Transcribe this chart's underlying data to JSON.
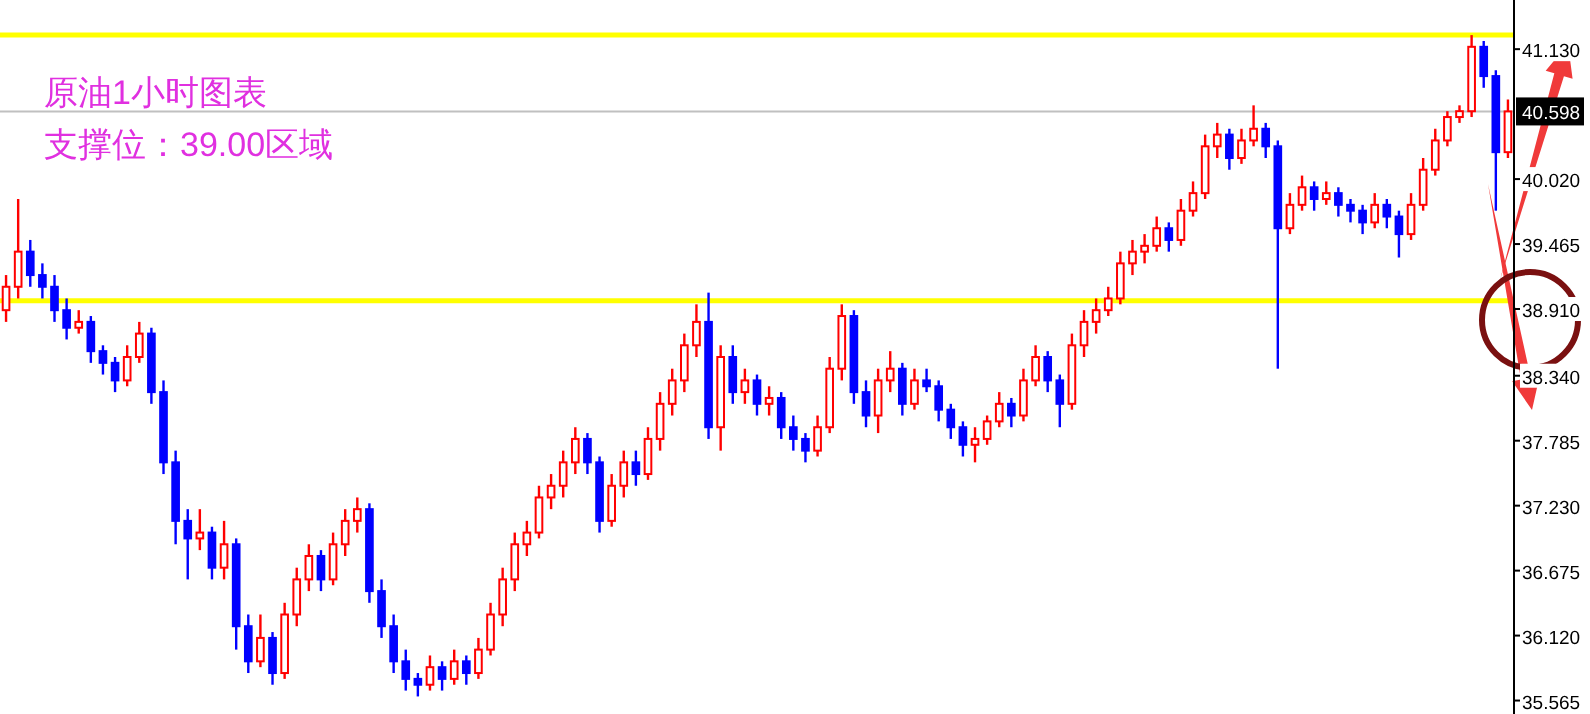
{
  "chart_data": {
    "type": "candlestick",
    "title": "原油1小时图表",
    "subtitle": "支撑位：39.00区域",
    "categories": [
      null,
      null,
      null,
      null,
      null,
      null,
      null,
      null,
      null,
      null,
      null,
      null,
      null,
      null,
      null,
      null,
      null,
      null,
      null,
      null,
      null,
      null,
      null,
      null,
      null,
      null,
      null,
      null,
      null,
      null,
      null,
      null,
      null,
      null,
      null,
      null,
      null,
      null,
      null,
      null,
      null,
      null,
      null,
      null,
      null,
      null,
      null,
      null,
      null,
      null,
      null,
      null,
      null,
      null,
      null,
      null,
      null,
      null,
      null,
      null,
      null,
      null,
      null,
      null,
      null,
      null,
      null,
      null,
      null,
      null,
      null,
      null,
      null,
      null,
      null,
      null,
      null,
      null,
      null,
      null,
      null,
      null,
      null,
      null,
      null,
      null,
      null,
      null,
      null,
      null,
      null,
      null,
      null,
      null,
      null,
      null,
      null,
      null,
      null,
      null,
      null,
      null,
      null,
      null,
      null,
      null,
      null,
      null,
      null,
      null,
      null,
      null,
      null,
      null,
      null,
      null,
      null,
      null,
      null,
      null,
      null,
      null,
      null,
      null,
      null
    ],
    "ohlc": [
      [
        38.9,
        39.2,
        38.8,
        39.1
      ],
      [
        39.1,
        39.85,
        39.0,
        39.4
      ],
      [
        39.4,
        39.5,
        39.1,
        39.2
      ],
      [
        39.2,
        39.3,
        39.0,
        39.1
      ],
      [
        39.1,
        39.2,
        38.8,
        38.9
      ],
      [
        38.9,
        39.0,
        38.65,
        38.75
      ],
      [
        38.75,
        38.9,
        38.7,
        38.8
      ],
      [
        38.8,
        38.85,
        38.45,
        38.55
      ],
      [
        38.55,
        38.6,
        38.35,
        38.45
      ],
      [
        38.45,
        38.5,
        38.2,
        38.3
      ],
      [
        38.3,
        38.6,
        38.25,
        38.5
      ],
      [
        38.5,
        38.8,
        38.45,
        38.7
      ],
      [
        38.7,
        38.75,
        38.1,
        38.2
      ],
      [
        38.2,
        38.3,
        37.5,
        37.6
      ],
      [
        37.6,
        37.7,
        36.9,
        37.1
      ],
      [
        37.1,
        37.2,
        36.6,
        36.95
      ],
      [
        36.95,
        37.2,
        36.85,
        37.0
      ],
      [
        37.0,
        37.05,
        36.6,
        36.7
      ],
      [
        36.7,
        37.1,
        36.6,
        36.9
      ],
      [
        36.9,
        36.95,
        36.0,
        36.2
      ],
      [
        36.2,
        36.3,
        35.8,
        35.9
      ],
      [
        35.9,
        36.3,
        35.85,
        36.1
      ],
      [
        36.1,
        36.15,
        35.7,
        35.8
      ],
      [
        35.8,
        36.4,
        35.75,
        36.3
      ],
      [
        36.3,
        36.7,
        36.2,
        36.6
      ],
      [
        36.6,
        36.9,
        36.5,
        36.8
      ],
      [
        36.8,
        36.85,
        36.5,
        36.6
      ],
      [
        36.6,
        37.0,
        36.55,
        36.9
      ],
      [
        36.9,
        37.2,
        36.8,
        37.1
      ],
      [
        37.1,
        37.3,
        37.0,
        37.2
      ],
      [
        37.2,
        37.25,
        36.4,
        36.5
      ],
      [
        36.5,
        36.6,
        36.1,
        36.2
      ],
      [
        36.2,
        36.3,
        35.8,
        35.9
      ],
      [
        35.9,
        36.0,
        35.65,
        35.75
      ],
      [
        35.75,
        35.8,
        35.6,
        35.7
      ],
      [
        35.7,
        35.95,
        35.65,
        35.85
      ],
      [
        35.85,
        35.9,
        35.65,
        35.75
      ],
      [
        35.75,
        36.0,
        35.7,
        35.9
      ],
      [
        35.9,
        35.95,
        35.7,
        35.8
      ],
      [
        35.8,
        36.1,
        35.75,
        36.0
      ],
      [
        36.0,
        36.4,
        35.95,
        36.3
      ],
      [
        36.3,
        36.7,
        36.2,
        36.6
      ],
      [
        36.6,
        37.0,
        36.5,
        36.9
      ],
      [
        36.9,
        37.1,
        36.8,
        37.0
      ],
      [
        37.0,
        37.4,
        36.95,
        37.3
      ],
      [
        37.3,
        37.5,
        37.2,
        37.4
      ],
      [
        37.4,
        37.7,
        37.3,
        37.6
      ],
      [
        37.6,
        37.9,
        37.5,
        37.8
      ],
      [
        37.8,
        37.85,
        37.5,
        37.6
      ],
      [
        37.6,
        37.65,
        37.0,
        37.1
      ],
      [
        37.1,
        37.5,
        37.05,
        37.4
      ],
      [
        37.4,
        37.7,
        37.3,
        37.6
      ],
      [
        37.6,
        37.7,
        37.4,
        37.5
      ],
      [
        37.5,
        37.9,
        37.45,
        37.8
      ],
      [
        37.8,
        38.2,
        37.7,
        38.1
      ],
      [
        38.1,
        38.4,
        38.0,
        38.3
      ],
      [
        38.3,
        38.7,
        38.2,
        38.6
      ],
      [
        38.6,
        38.95,
        38.5,
        38.8
      ],
      [
        38.8,
        39.05,
        37.8,
        37.9
      ],
      [
        37.9,
        38.6,
        37.7,
        38.5
      ],
      [
        38.5,
        38.6,
        38.1,
        38.2
      ],
      [
        38.2,
        38.4,
        38.1,
        38.3
      ],
      [
        38.3,
        38.35,
        38.0,
        38.1
      ],
      [
        38.1,
        38.25,
        38.0,
        38.15
      ],
      [
        38.15,
        38.2,
        37.8,
        37.9
      ],
      [
        37.9,
        38.0,
        37.7,
        37.8
      ],
      [
        37.8,
        37.85,
        37.6,
        37.7
      ],
      [
        37.7,
        38.0,
        37.65,
        37.9
      ],
      [
        37.9,
        38.5,
        37.85,
        38.4
      ],
      [
        38.4,
        38.95,
        38.3,
        38.85
      ],
      [
        38.85,
        38.9,
        38.1,
        38.2
      ],
      [
        38.2,
        38.3,
        37.9,
        38.0
      ],
      [
        38.0,
        38.4,
        37.85,
        38.3
      ],
      [
        38.3,
        38.55,
        38.2,
        38.4
      ],
      [
        38.4,
        38.45,
        38.0,
        38.1
      ],
      [
        38.1,
        38.4,
        38.05,
        38.3
      ],
      [
        38.3,
        38.4,
        38.2,
        38.25
      ],
      [
        38.25,
        38.3,
        37.95,
        38.05
      ],
      [
        38.05,
        38.1,
        37.8,
        37.9
      ],
      [
        37.9,
        37.95,
        37.65,
        37.75
      ],
      [
        37.75,
        37.9,
        37.6,
        37.8
      ],
      [
        37.8,
        38.0,
        37.75,
        37.95
      ],
      [
        37.95,
        38.2,
        37.9,
        38.1
      ],
      [
        38.1,
        38.15,
        37.9,
        38.0
      ],
      [
        38.0,
        38.4,
        37.95,
        38.3
      ],
      [
        38.3,
        38.6,
        38.25,
        38.5
      ],
      [
        38.5,
        38.55,
        38.2,
        38.3
      ],
      [
        38.3,
        38.35,
        37.9,
        38.1
      ],
      [
        38.1,
        38.7,
        38.05,
        38.6
      ],
      [
        38.6,
        38.9,
        38.5,
        38.8
      ],
      [
        38.8,
        39.0,
        38.7,
        38.9
      ],
      [
        38.9,
        39.1,
        38.85,
        39.0
      ],
      [
        39.0,
        39.4,
        38.95,
        39.3
      ],
      [
        39.3,
        39.5,
        39.2,
        39.4
      ],
      [
        39.4,
        39.55,
        39.3,
        39.45
      ],
      [
        39.45,
        39.7,
        39.4,
        39.6
      ],
      [
        39.6,
        39.65,
        39.4,
        39.5
      ],
      [
        39.5,
        39.85,
        39.45,
        39.75
      ],
      [
        39.75,
        40.0,
        39.7,
        39.9
      ],
      [
        39.9,
        40.4,
        39.85,
        40.3
      ],
      [
        40.3,
        40.5,
        40.2,
        40.4
      ],
      [
        40.4,
        40.45,
        40.1,
        40.2
      ],
      [
        40.2,
        40.45,
        40.15,
        40.35
      ],
      [
        40.35,
        40.65,
        40.3,
        40.45
      ],
      [
        40.45,
        40.5,
        40.2,
        40.3
      ],
      [
        40.3,
        40.35,
        38.4,
        39.6
      ],
      [
        39.6,
        39.9,
        39.55,
        39.8
      ],
      [
        39.8,
        40.05,
        39.75,
        39.95
      ],
      [
        39.95,
        40.0,
        39.75,
        39.85
      ],
      [
        39.85,
        40.0,
        39.8,
        39.9
      ],
      [
        39.9,
        39.95,
        39.7,
        39.8
      ],
      [
        39.8,
        39.85,
        39.65,
        39.75
      ],
      [
        39.75,
        39.8,
        39.55,
        39.65
      ],
      [
        39.65,
        39.9,
        39.6,
        39.8
      ],
      [
        39.8,
        39.85,
        39.6,
        39.7
      ],
      [
        39.7,
        39.75,
        39.35,
        39.55
      ],
      [
        39.55,
        39.9,
        39.5,
        39.8
      ],
      [
        39.8,
        40.2,
        39.75,
        40.1
      ],
      [
        40.1,
        40.45,
        40.05,
        40.35
      ],
      [
        40.35,
        40.6,
        40.3,
        40.55
      ],
      [
        40.55,
        40.65,
        40.5,
        40.6
      ],
      [
        40.6,
        41.25,
        40.55,
        41.15
      ],
      [
        41.15,
        41.2,
        40.8,
        40.9
      ],
      [
        40.9,
        40.95,
        39.75,
        40.25
      ],
      [
        40.25,
        40.7,
        40.2,
        40.598
      ]
    ],
    "ylim": [
      35.45,
      41.55
    ],
    "yticks": [
      {
        "value": 35.565,
        "label": "35.565"
      },
      {
        "value": 36.12,
        "label": "36.120"
      },
      {
        "value": 36.675,
        "label": "36.675"
      },
      {
        "value": 37.23,
        "label": "37.230"
      },
      {
        "value": 37.785,
        "label": "37.785"
      },
      {
        "value": 38.34,
        "label": "38.340"
      },
      {
        "value": 38.91,
        "label": "38.910"
      },
      {
        "value": 39.465,
        "label": "39.465"
      },
      {
        "value": 40.02,
        "label": "40.020"
      },
      {
        "value": 41.13,
        "label": "41.130"
      }
    ],
    "ref_lines": [
      {
        "axis": "y",
        "value": 41.25,
        "color": "#ffff00"
      },
      {
        "axis": "y",
        "value": 38.98,
        "color": "#ffff00"
      },
      {
        "axis": "y",
        "value": 40.598,
        "label": "40.598",
        "color": "#c0c0c0"
      }
    ],
    "grid": false
  }
}
